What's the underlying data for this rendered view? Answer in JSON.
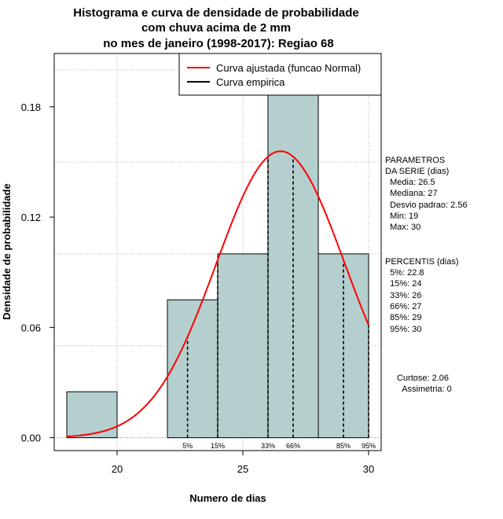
{
  "chart_data": {
    "type": "histogram",
    "title": [
      "Histograma e curva de densidade de probabilidade",
      "com chuva acima de 2 mm",
      "no mes de janeiro (1998-2017): Regiao 68"
    ],
    "xlabel": "Numero de dias",
    "ylabel": "Densidade de probabilidade",
    "xlim": [
      17.5,
      30.5
    ],
    "ylim": [
      -0.007,
      0.209
    ],
    "x_ticks": [
      20,
      25,
      30
    ],
    "y_ticks": [
      0.0,
      0.06,
      0.12,
      0.18
    ],
    "y_tick_labels": [
      "0.00",
      "0.06",
      "0.12",
      "0.18"
    ],
    "bins": [
      {
        "x0": 18,
        "x1": 20,
        "density": 0.025
      },
      {
        "x0": 20,
        "x1": 22,
        "density": 0.0
      },
      {
        "x0": 22,
        "x1": 24,
        "density": 0.075
      },
      {
        "x0": 24,
        "x1": 26,
        "density": 0.1
      },
      {
        "x0": 26,
        "x1": 28,
        "density": 0.2
      },
      {
        "x0": 28,
        "x1": 30,
        "density": 0.1
      }
    ],
    "bar_color": "#b5cfcf",
    "normal_curve": {
      "mean": 26.5,
      "sd": 2.56,
      "x_from": 18,
      "x_to": 30,
      "color": "#ff0000"
    },
    "percentile_lines": [
      {
        "label": "5%",
        "x": 22.8
      },
      {
        "label": "15%",
        "x": 24
      },
      {
        "label": "33%",
        "x": 26
      },
      {
        "label": "66%",
        "x": 27
      },
      {
        "label": "85%",
        "x": 29
      },
      {
        "label": "95%",
        "x": 30
      }
    ],
    "legend": {
      "position": "top-right",
      "entries": [
        {
          "label": "Curva ajustada (funcao Normal)",
          "color": "#ff0000"
        },
        {
          "label": "Curva empirica",
          "color": "#000000"
        }
      ]
    },
    "grid_x": [
      20,
      25,
      30
    ],
    "grid_y": [
      0.05,
      0.1,
      0.15,
      0.2
    ],
    "side_panel": {
      "parametros": [
        "PARAMETROS",
        "DA SERIE (dias)",
        "  Media: 26.5",
        "  Mediana: 27",
        "  Desvio padrao: 2.56",
        "  Min: 19",
        "  Max: 30"
      ],
      "percentis": [
        "PERCENTIS (dias)",
        "  5%: 22.8",
        "  15%: 24",
        "  33%: 26",
        "  66%: 27",
        "  85%: 29",
        "  95%: 30"
      ],
      "stats": [
        "Curtose: 2.06",
        "Assimetria: 0"
      ]
    }
  }
}
